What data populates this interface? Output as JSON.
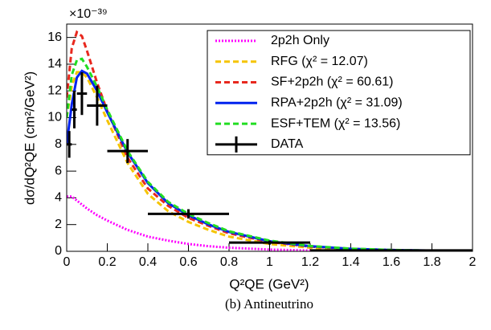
{
  "chart_data": {
    "type": "line",
    "multiplier": "×10⁻³⁹",
    "x_label": "Q²QE (GeV²)",
    "y_label": "dσ/dQ²QE (cm²/GeV²)",
    "caption": "(b) Antineutrino",
    "xlim": [
      0,
      2
    ],
    "ylim": [
      0,
      17
    ],
    "xticks": [
      0,
      0.2,
      0.4,
      0.6,
      0.8,
      1,
      1.2,
      1.4,
      1.6,
      1.8,
      2
    ],
    "yticks": [
      0,
      2,
      4,
      6,
      8,
      10,
      12,
      14,
      16
    ],
    "legend": "upper right",
    "x": [
      0,
      0.025,
      0.05,
      0.075,
      0.1,
      0.15,
      0.2,
      0.3,
      0.4,
      0.5,
      0.6,
      0.7,
      0.8,
      1.0,
      1.2,
      1.4,
      1.6,
      1.8,
      2.0
    ],
    "series": [
      {
        "name": "2p2h Only",
        "color": "#ff00ff",
        "line_style": "dotted",
        "values": [
          4.1,
          4.1,
          3.8,
          3.5,
          3.2,
          2.7,
          2.3,
          1.6,
          1.1,
          0.8,
          0.55,
          0.38,
          0.27,
          0.13,
          0.06,
          0.03,
          0.01,
          0.005,
          0
        ]
      },
      {
        "name": "RFG (χ² = 12.07)",
        "color": "#f5c400",
        "line_style": "dashed",
        "values": [
          10,
          12.4,
          13.4,
          13.4,
          13,
          11.5,
          9.8,
          6.6,
          4.3,
          3.0,
          2.2,
          1.6,
          1.1,
          0.55,
          0.27,
          0.13,
          0.06,
          0.03,
          0.01
        ]
      },
      {
        "name": "SF+2p2h (χ² = 60.61)",
        "color": "#e8281e",
        "line_style": "dashed",
        "values": [
          11.5,
          15.2,
          16.4,
          16.1,
          15,
          12.6,
          10.5,
          7,
          4.7,
          3.4,
          2.5,
          1.9,
          1.35,
          0.7,
          0.35,
          0.18,
          0.1,
          0.05,
          0.03
        ]
      },
      {
        "name": "RPA+2p2h (χ² = 31.09)",
        "color": "#0022ee",
        "line_style": "solid",
        "values": [
          8,
          11,
          13,
          13.5,
          13.3,
          12,
          10.4,
          7.4,
          5.1,
          3.6,
          2.7,
          2.0,
          1.45,
          0.75,
          0.38,
          0.19,
          0.1,
          0.05,
          0.03
        ]
      },
      {
        "name": "ESF+TEM (χ² = 13.56)",
        "color": "#22dd22",
        "line_style": "dashed",
        "values": [
          10,
          13.2,
          14.3,
          14.4,
          13.8,
          12.3,
          10.6,
          7.5,
          5.2,
          3.7,
          2.8,
          2.1,
          1.5,
          0.8,
          0.4,
          0.2,
          0.1,
          0.05,
          0.03
        ]
      },
      {
        "name": "DATA",
        "color": "#000000",
        "type": "errorbar",
        "x": [
          0.0125,
          0.0375,
          0.075,
          0.15,
          0.3,
          0.6,
          1.0,
          1.6
        ],
        "xerr": [
          0.0125,
          0.0125,
          0.025,
          0.05,
          0.1,
          0.2,
          0.2,
          0.4
        ],
        "values": [
          8.0,
          10.6,
          11.8,
          10.9,
          7.5,
          2.8,
          0.65,
          0.07
        ],
        "yerr": [
          1.0,
          1.4,
          1.6,
          1.5,
          0.9,
          0.35,
          0.15,
          0.03
        ]
      }
    ]
  }
}
